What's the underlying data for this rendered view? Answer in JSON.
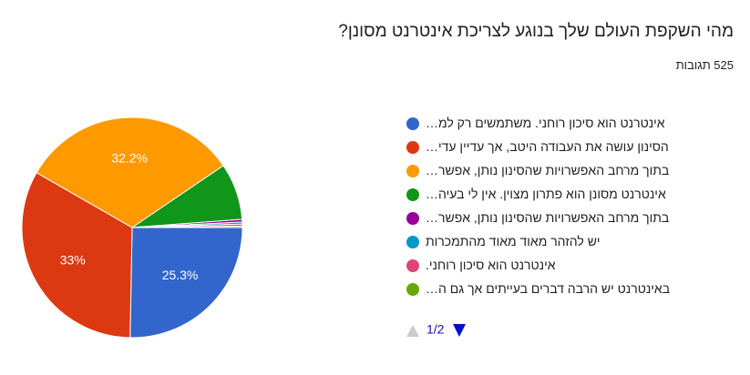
{
  "chart_data": {
    "type": "pie",
    "title": "מהי השקפת העולם שלך בנוגע לצריכת אינטרנט מסונן?",
    "subtitle": "525 תגובות",
    "categories": [
      "אינטרנט הוא סיכון רוחני. משתמשים רק למ…",
      "הסינון עושה את העבודה היטב, אך עדיין עדי…",
      "בתוך מרחב האפשרויות שהסינון נותן, אפשר…",
      "אינטרנט מסונן הוא פתרון מצוין. אין לי בעיה…",
      "בתוך מרחב האפשרויות שהסינון נותן, אפשר…",
      "יש להזהר מאוד מאוד מהתמכרות",
      "אינטרנט הוא סיכון רוחני.",
      "באינטרנט יש הרבה דברים בעייתים אך גם ה…"
    ],
    "values": [
      25.3,
      33,
      32.2,
      8.3,
      0.4,
      0.3,
      0.3,
      0.2
    ],
    "value_labels": [
      "25.3%",
      "33%",
      "32.2%",
      null,
      null,
      null,
      null,
      null
    ],
    "colors": [
      "#3366cc",
      "#dc3912",
      "#ff9900",
      "#109618",
      "#990099",
      "#0099c6",
      "#dd4477",
      "#66aa00"
    ],
    "pagination": "1/2"
  }
}
